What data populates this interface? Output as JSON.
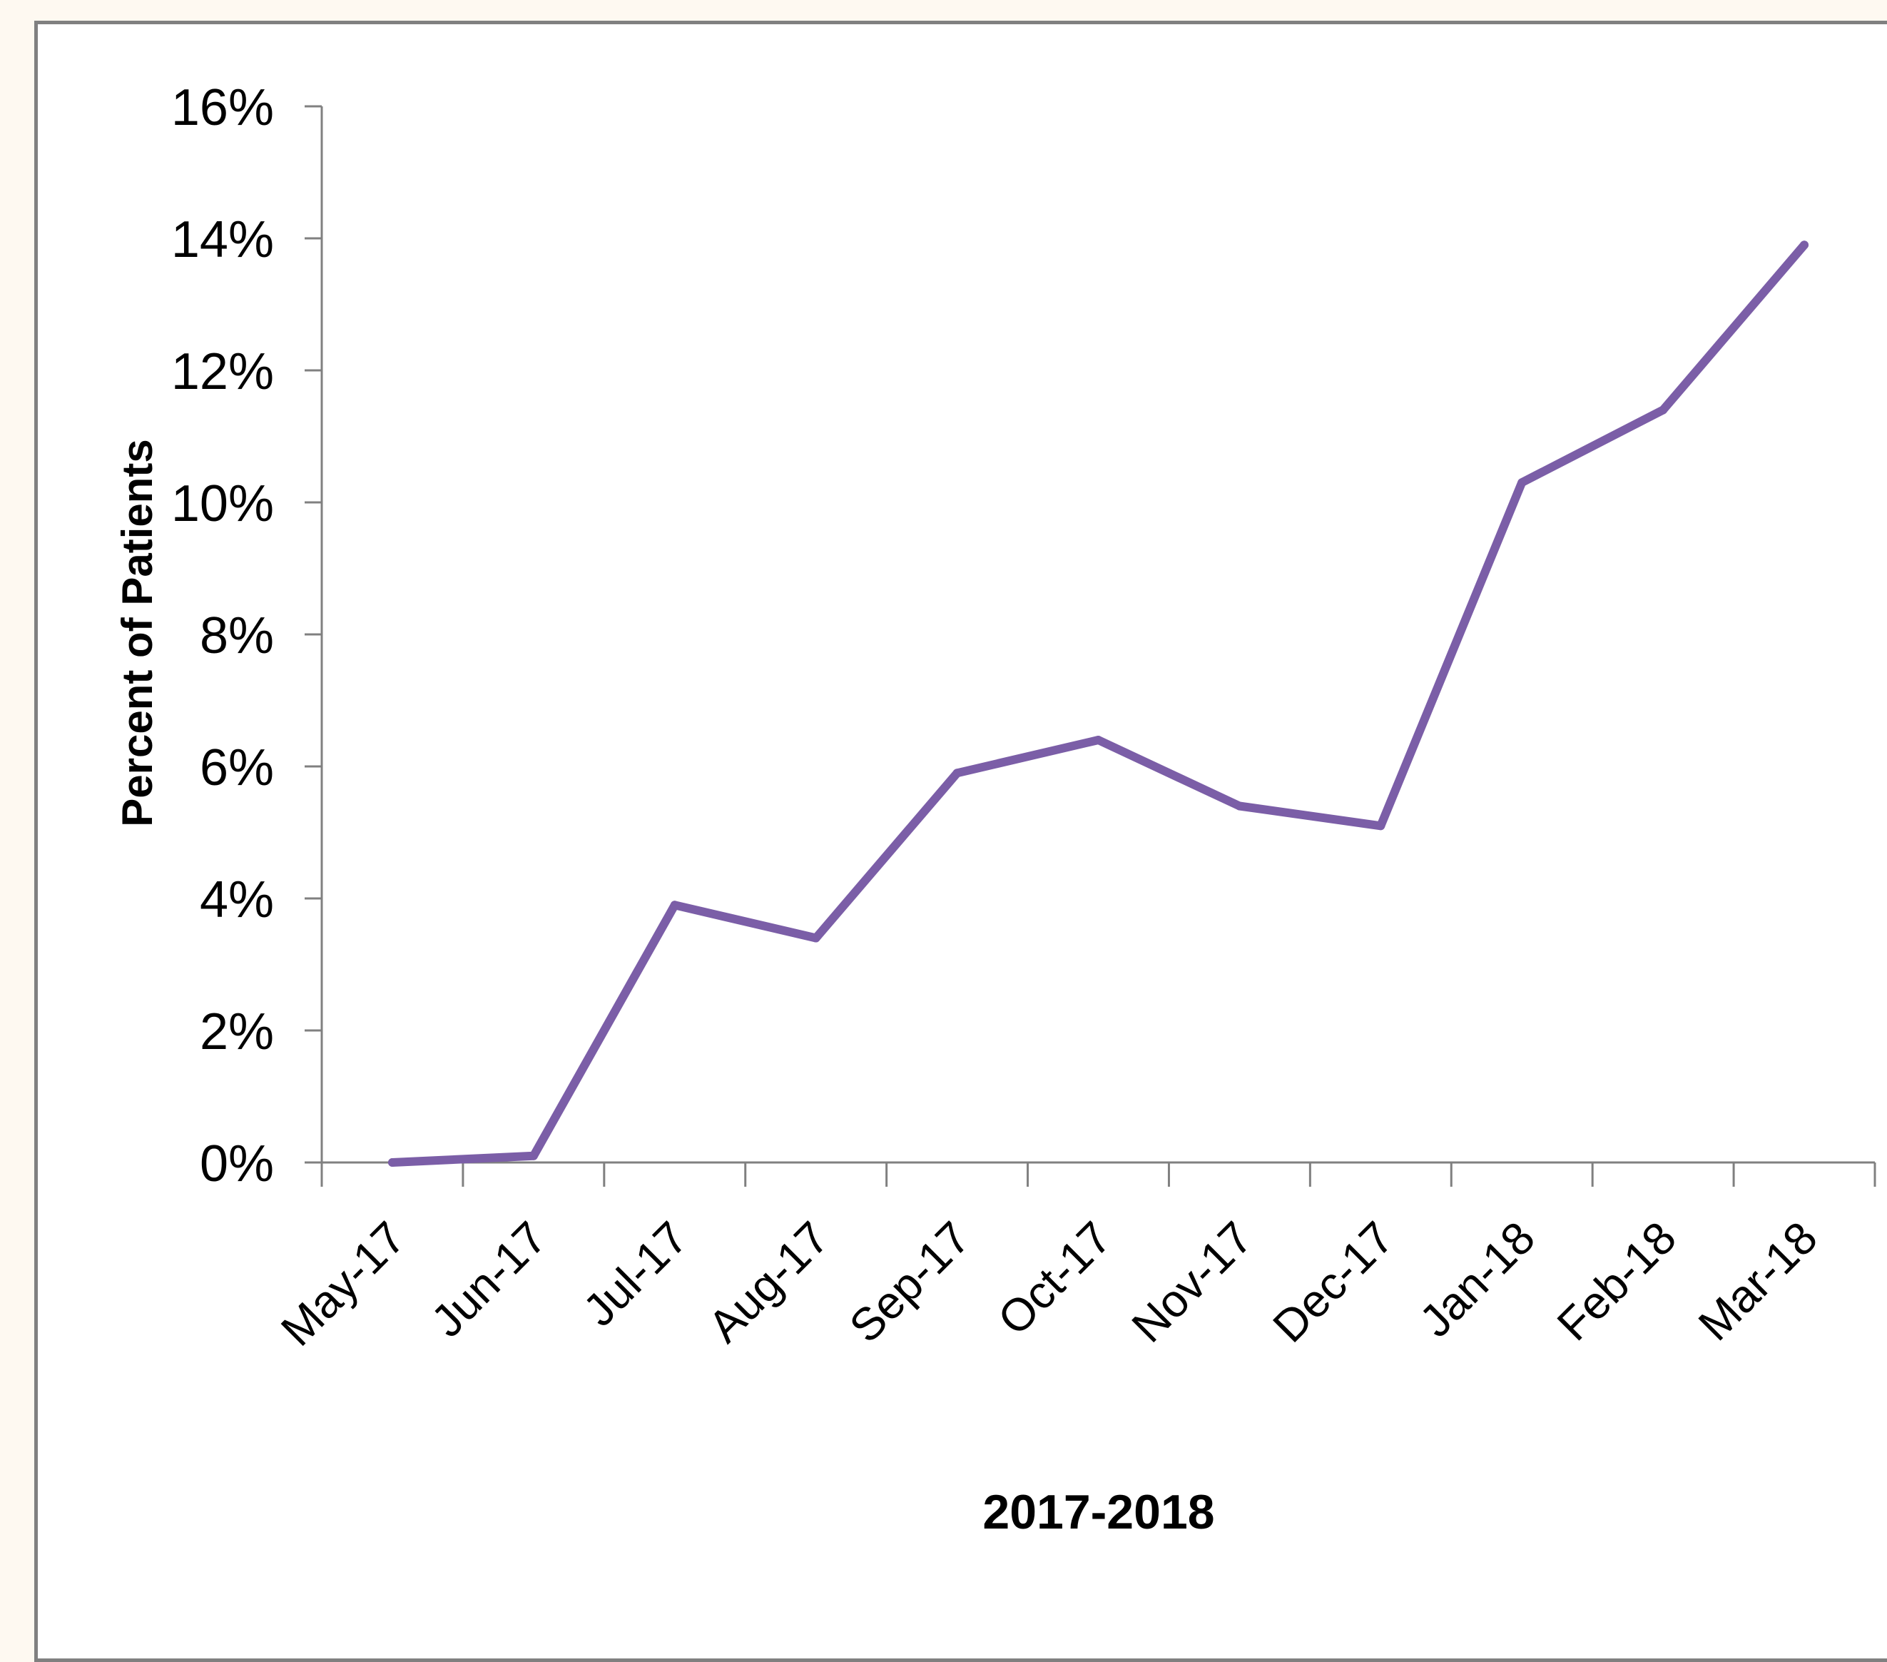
{
  "chart_data": {
    "type": "line",
    "title": "",
    "xlabel": "2017-2018",
    "ylabel": "Percent of Patients",
    "categories": [
      "May-17",
      "Jun-17",
      "Jul-17",
      "Aug-17",
      "Sep-17",
      "Oct-17",
      "Nov-17",
      "Dec-17",
      "Jan-18",
      "Feb-18",
      "Mar-18"
    ],
    "series": [
      {
        "values": [
          0.0,
          0.1,
          3.9,
          3.4,
          5.9,
          6.4,
          5.4,
          5.1,
          10.3,
          11.4,
          13.9
        ],
        "color": "#7b5ea7"
      }
    ],
    "y_tick_labels": [
      "0%",
      "2%",
      "4%",
      "6%",
      "8%",
      "10%",
      "12%",
      "14%",
      "16%"
    ],
    "y_tick_values": [
      0,
      2,
      4,
      6,
      8,
      10,
      12,
      14,
      16
    ],
    "ylim": [
      0,
      16
    ],
    "grid": false,
    "legend": "none",
    "axis_color": "#808080"
  }
}
